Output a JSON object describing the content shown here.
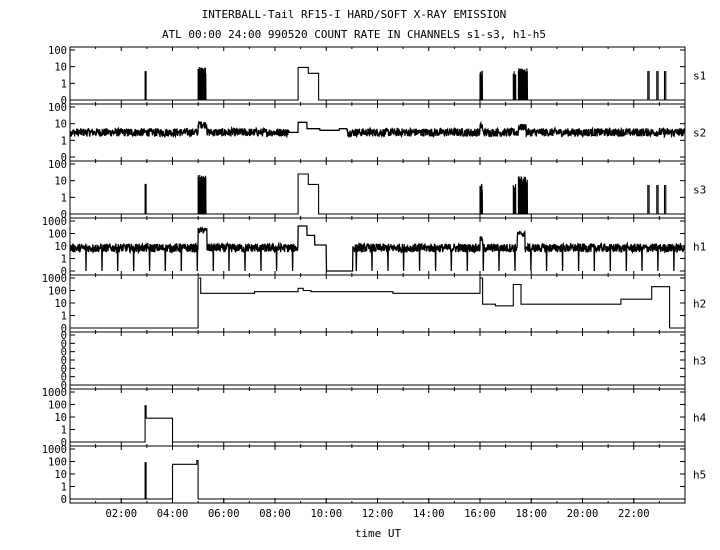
{
  "chart_data": {
    "type": "line",
    "title": "INTERBALL-Tail RF15-I HARD/SOFT X-RAY EMISSION",
    "subtitle": "ATL 00:00 24:00 990520  COUNT RATE IN CHANNELS s1-s3, h1-h5",
    "xlabel": "time UT",
    "x_range_hours": [
      0,
      24
    ],
    "x_ticks": [
      "02:00",
      "04:00",
      "06:00",
      "08:00",
      "10:00",
      "12:00",
      "14:00",
      "16:00",
      "18:00",
      "20:00",
      "22:00"
    ],
    "y_scale": "log",
    "grid": false,
    "panels": [
      {
        "name": "s1",
        "y_ticks": [
          "100",
          "10",
          "1",
          "0"
        ],
        "noise": null,
        "segments": [
          {
            "x0": 0,
            "x1": 2.93,
            "y": 0
          },
          {
            "x0": 2.93,
            "x1": 2.97,
            "y": 5
          },
          {
            "x0": 2.97,
            "x1": 5.0,
            "y": 0
          },
          {
            "x0": 5.0,
            "x1": 5.3,
            "y": 8,
            "spiky": true
          },
          {
            "x0": 5.3,
            "x1": 8.9,
            "y": 0
          },
          {
            "x0": 8.9,
            "x1": 9.3,
            "y": 9
          },
          {
            "x0": 9.3,
            "x1": 9.7,
            "y": 4
          },
          {
            "x0": 9.7,
            "x1": 16.0,
            "y": 0
          },
          {
            "x0": 16.0,
            "x1": 16.1,
            "y": 5,
            "spiky": true
          },
          {
            "x0": 16.1,
            "x1": 17.3,
            "y": 0
          },
          {
            "x0": 17.3,
            "x1": 17.4,
            "y": 5,
            "spiky": true
          },
          {
            "x0": 17.4,
            "x1": 17.5,
            "y": 0
          },
          {
            "x0": 17.5,
            "x1": 17.85,
            "y": 7,
            "spiky": true
          },
          {
            "x0": 17.85,
            "x1": 22.55,
            "y": 0
          },
          {
            "x0": 22.55,
            "x1": 22.6,
            "y": 5
          },
          {
            "x0": 22.6,
            "x1": 22.9,
            "y": 0
          },
          {
            "x0": 22.9,
            "x1": 22.95,
            "y": 5
          },
          {
            "x0": 22.95,
            "x1": 23.2,
            "y": 0
          },
          {
            "x0": 23.2,
            "x1": 23.25,
            "y": 5
          },
          {
            "x0": 23.25,
            "x1": 24,
            "y": 0
          }
        ]
      },
      {
        "name": "s2",
        "y_ticks": [
          "100",
          "10",
          "1",
          "0"
        ],
        "noise": {
          "base": 3,
          "amp": 0.25
        },
        "segments": [
          {
            "x0": 5.0,
            "x1": 5.35,
            "y": 10,
            "spiky": true
          },
          {
            "x0": 8.55,
            "x1": 8.9,
            "y": 3,
            "flat": true
          },
          {
            "x0": 8.9,
            "x1": 9.25,
            "y": 12,
            "flat": true
          },
          {
            "x0": 9.25,
            "x1": 9.75,
            "y": 5,
            "flat": true
          },
          {
            "x0": 9.75,
            "x1": 10.5,
            "y": 4,
            "flat": true
          },
          {
            "x0": 10.5,
            "x1": 10.8,
            "y": 5,
            "flat": true
          },
          {
            "x0": 16.0,
            "x1": 16.1,
            "y": 8,
            "spiky": true
          },
          {
            "x0": 17.5,
            "x1": 17.8,
            "y": 7,
            "spiky": true
          }
        ]
      },
      {
        "name": "s3",
        "y_ticks": [
          "100",
          "10",
          "1",
          "0"
        ],
        "noise": null,
        "segments": [
          {
            "x0": 0,
            "x1": 2.93,
            "y": 0
          },
          {
            "x0": 2.93,
            "x1": 2.97,
            "y": 6
          },
          {
            "x0": 2.97,
            "x1": 5.0,
            "y": 0
          },
          {
            "x0": 5.0,
            "x1": 5.3,
            "y": 20,
            "spiky": true
          },
          {
            "x0": 5.3,
            "x1": 8.9,
            "y": 0
          },
          {
            "x0": 8.9,
            "x1": 9.3,
            "y": 25
          },
          {
            "x0": 9.3,
            "x1": 9.7,
            "y": 6
          },
          {
            "x0": 9.7,
            "x1": 16.0,
            "y": 0
          },
          {
            "x0": 16.0,
            "x1": 16.1,
            "y": 6,
            "spiky": true
          },
          {
            "x0": 16.1,
            "x1": 17.3,
            "y": 0
          },
          {
            "x0": 17.3,
            "x1": 17.4,
            "y": 6,
            "spiky": true
          },
          {
            "x0": 17.4,
            "x1": 17.5,
            "y": 0
          },
          {
            "x0": 17.5,
            "x1": 17.85,
            "y": 15,
            "spiky": true
          },
          {
            "x0": 17.85,
            "x1": 22.55,
            "y": 0
          },
          {
            "x0": 22.55,
            "x1": 22.6,
            "y": 5
          },
          {
            "x0": 22.6,
            "x1": 22.9,
            "y": 0
          },
          {
            "x0": 22.9,
            "x1": 22.95,
            "y": 5
          },
          {
            "x0": 22.95,
            "x1": 23.2,
            "y": 0
          },
          {
            "x0": 23.2,
            "x1": 23.25,
            "y": 5
          },
          {
            "x0": 23.25,
            "x1": 24,
            "y": 0
          }
        ]
      },
      {
        "name": "h1",
        "y_ticks": [
          "1000",
          "100",
          "10",
          "1",
          "0"
        ],
        "noise": {
          "base": 7,
          "amp": 0.35,
          "dropouts_every_hours": 0.62
        },
        "segments": [
          {
            "x0": 5.0,
            "x1": 5.35,
            "y": 200,
            "spiky": true
          },
          {
            "x0": 8.9,
            "x1": 9.25,
            "y": 400,
            "flat": true
          },
          {
            "x0": 9.25,
            "x1": 9.55,
            "y": 70,
            "flat": true
          },
          {
            "x0": 9.55,
            "x1": 10.0,
            "y": 12,
            "flat": true
          },
          {
            "x0": 10.0,
            "x1": 11.0,
            "y": 0,
            "flat": true
          },
          {
            "x0": 16.0,
            "x1": 16.1,
            "y": 40,
            "spiky": true
          },
          {
            "x0": 17.45,
            "x1": 17.75,
            "y": 100,
            "spiky": true
          }
        ]
      },
      {
        "name": "h2",
        "y_ticks": [
          "1000",
          "100",
          "10",
          "1",
          "0"
        ],
        "noise": null,
        "segments": [
          {
            "x0": 0,
            "x1": 5.0,
            "y": 0
          },
          {
            "x0": 5.0,
            "x1": 5.1,
            "y": 1000
          },
          {
            "x0": 5.1,
            "x1": 7.2,
            "y": 60
          },
          {
            "x0": 7.2,
            "x1": 8.9,
            "y": 80
          },
          {
            "x0": 8.9,
            "x1": 9.1,
            "y": 150
          },
          {
            "x0": 9.1,
            "x1": 9.4,
            "y": 100
          },
          {
            "x0": 9.4,
            "x1": 12.6,
            "y": 80
          },
          {
            "x0": 12.6,
            "x1": 16.0,
            "y": 60
          },
          {
            "x0": 16.0,
            "x1": 16.1,
            "y": 1000
          },
          {
            "x0": 16.1,
            "x1": 16.6,
            "y": 8
          },
          {
            "x0": 16.6,
            "x1": 17.3,
            "y": 6
          },
          {
            "x0": 17.3,
            "x1": 17.6,
            "y": 300
          },
          {
            "x0": 17.6,
            "x1": 21.5,
            "y": 8
          },
          {
            "x0": 21.5,
            "x1": 22.7,
            "y": 20
          },
          {
            "x0": 22.7,
            "x1": 23.4,
            "y": 200
          },
          {
            "x0": 23.4,
            "x1": 24,
            "y": 0
          }
        ]
      },
      {
        "name": "h3",
        "y_ticks": [
          "0",
          "0",
          "0",
          "0",
          "0",
          "0",
          "0"
        ],
        "noise": null,
        "segments": [
          {
            "x0": 0,
            "x1": 24,
            "y": 0
          }
        ]
      },
      {
        "name": "h4",
        "y_ticks": [
          "1000",
          "100",
          "10",
          "1",
          "0"
        ],
        "noise": null,
        "segments": [
          {
            "x0": 0,
            "x1": 2.93,
            "y": 0
          },
          {
            "x0": 2.93,
            "x1": 2.97,
            "y": 80
          },
          {
            "x0": 2.97,
            "x1": 4.0,
            "y": 8
          },
          {
            "x0": 4.0,
            "x1": 24,
            "y": 0
          }
        ]
      },
      {
        "name": "h5",
        "y_ticks": [
          "1000",
          "100",
          "10",
          "1",
          "0"
        ],
        "noise": null,
        "segments": [
          {
            "x0": 0,
            "x1": 2.93,
            "y": 0
          },
          {
            "x0": 2.93,
            "x1": 2.97,
            "y": 80
          },
          {
            "x0": 2.97,
            "x1": 4.0,
            "y": 0
          },
          {
            "x0": 4.0,
            "x1": 4.95,
            "y": 60
          },
          {
            "x0": 4.95,
            "x1": 5.0,
            "y": 120
          },
          {
            "x0": 5.0,
            "x1": 24,
            "y": 0
          }
        ]
      }
    ]
  }
}
